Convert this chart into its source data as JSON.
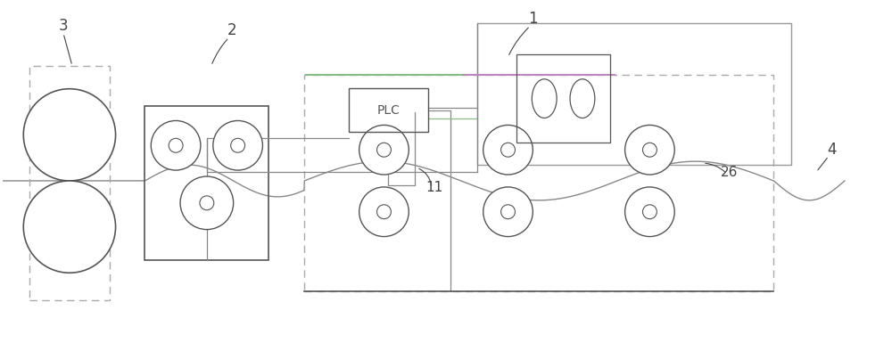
{
  "bg_color": "#ffffff",
  "dk": "#555555",
  "gray": "#888888",
  "dash_c": "#aaaaaa",
  "green_c": "#88bb88",
  "purple_c": "#bb88bb",
  "lb": "#444444",
  "figsize": [
    10.0,
    4.03
  ],
  "dpi": 100
}
